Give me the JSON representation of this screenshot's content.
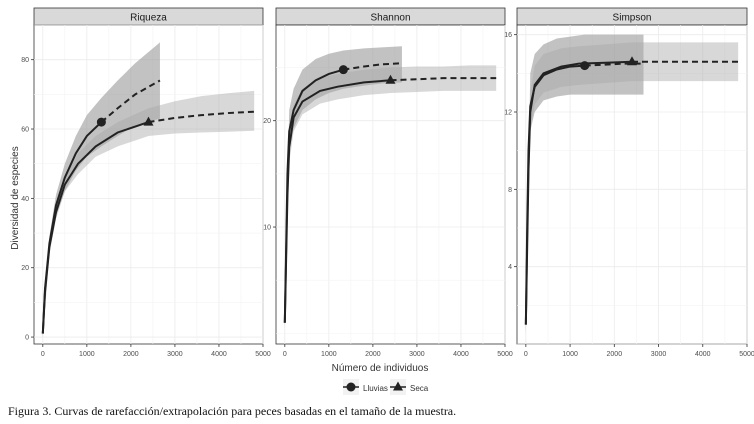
{
  "figure": {
    "caption": "Figura 3. Curvas de rarefacción/extrapolación para peces basadas en el tamaño de la muestra.",
    "xlabel": "Número de individuos",
    "ylabel": "Diversidad de especies",
    "legend": {
      "position": "bottom",
      "items": [
        {
          "label": "Lluvias",
          "shape": "circle"
        },
        {
          "label": "Seca",
          "shape": "triangle"
        }
      ]
    },
    "colors": {
      "line": "#222222",
      "ribbon_dark": "#9a9a9a",
      "ribbon_light": "#cfcfcf",
      "strip": "#d9d9d9",
      "grid": "#ebebeb"
    }
  },
  "chart_data": [
    {
      "type": "line",
      "title": "Riqueza",
      "xlim": [
        -200,
        5000
      ],
      "ylim": [
        -2,
        90
      ],
      "xticks": [
        0,
        1000,
        2000,
        3000,
        4000,
        5000
      ],
      "yticks": [
        0,
        20,
        40,
        60,
        80
      ],
      "grid": true,
      "series": [
        {
          "name": "Lluvias",
          "reference_sample": {
            "x": 1330,
            "y": 62
          },
          "interpolated": [
            [
              0,
              1
            ],
            [
              50,
              14
            ],
            [
              150,
              27
            ],
            [
              300,
              38
            ],
            [
              500,
              46
            ],
            [
              750,
              53
            ],
            [
              1000,
              58
            ],
            [
              1330,
              62
            ]
          ],
          "extrapolated": [
            [
              1330,
              62
            ],
            [
              1700,
              66
            ],
            [
              2100,
              70
            ],
            [
              2660,
              74
            ]
          ],
          "ribbon_upper": [
            [
              0,
              2
            ],
            [
              150,
              29
            ],
            [
              300,
              41
            ],
            [
              500,
              50
            ],
            [
              750,
              58
            ],
            [
              1000,
              64
            ],
            [
              1330,
              69
            ],
            [
              1700,
              74
            ],
            [
              2100,
              79
            ],
            [
              2660,
              85
            ]
          ],
          "ribbon_lower": [
            [
              0,
              0
            ],
            [
              150,
              25
            ],
            [
              300,
              35
            ],
            [
              500,
              42
            ],
            [
              750,
              48
            ],
            [
              1000,
              52
            ],
            [
              1330,
              55
            ],
            [
              1700,
              58
            ],
            [
              2100,
              61
            ],
            [
              2660,
              63
            ]
          ]
        },
        {
          "name": "Seca",
          "reference_sample": {
            "x": 2400,
            "y": 62
          },
          "interpolated": [
            [
              0,
              1
            ],
            [
              50,
              13
            ],
            [
              150,
              26
            ],
            [
              300,
              36
            ],
            [
              500,
              44
            ],
            [
              800,
              50
            ],
            [
              1200,
              55
            ],
            [
              1700,
              59
            ],
            [
              2400,
              62
            ]
          ],
          "extrapolated": [
            [
              2400,
              62
            ],
            [
              3000,
              63.2
            ],
            [
              3600,
              64
            ],
            [
              4200,
              64.6
            ],
            [
              4800,
              65
            ]
          ],
          "ribbon_upper": [
            [
              0,
              2
            ],
            [
              150,
              28
            ],
            [
              300,
              38
            ],
            [
              500,
              46
            ],
            [
              800,
              53
            ],
            [
              1200,
              58
            ],
            [
              1700,
              62
            ],
            [
              2400,
              66
            ],
            [
              3000,
              68
            ],
            [
              3600,
              69.5
            ],
            [
              4200,
              70.3
            ],
            [
              4800,
              71
            ]
          ],
          "ribbon_lower": [
            [
              0,
              0
            ],
            [
              150,
              24
            ],
            [
              300,
              34
            ],
            [
              500,
              42
            ],
            [
              800,
              47
            ],
            [
              1200,
              52
            ],
            [
              1700,
              55
            ],
            [
              2400,
              58
            ],
            [
              3000,
              58.7
            ],
            [
              3600,
              59
            ],
            [
              4200,
              59.2
            ],
            [
              4800,
              59.5
            ]
          ]
        }
      ]
    },
    {
      "type": "line",
      "title": "Shannon",
      "xlim": [
        -200,
        5000
      ],
      "ylim": [
        -1,
        29
      ],
      "xticks": [
        0,
        1000,
        2000,
        3000,
        4000,
        5000
      ],
      "yticks": [
        10,
        20
      ],
      "grid": true,
      "series": [
        {
          "name": "Lluvias",
          "reference_sample": {
            "x": 1330,
            "y": 24.8
          },
          "interpolated": [
            [
              0,
              1
            ],
            [
              30,
              8
            ],
            [
              60,
              15
            ],
            [
              100,
              19
            ],
            [
              200,
              21
            ],
            [
              400,
              22.8
            ],
            [
              700,
              23.8
            ],
            [
              1000,
              24.4
            ],
            [
              1330,
              24.8
            ]
          ],
          "extrapolated": [
            [
              1330,
              24.8
            ],
            [
              1800,
              25.1
            ],
            [
              2200,
              25.3
            ],
            [
              2660,
              25.4
            ]
          ],
          "ribbon_upper": [
            [
              0,
              1.5
            ],
            [
              100,
              21
            ],
            [
              200,
              23
            ],
            [
              400,
              24.8
            ],
            [
              700,
              25.8
            ],
            [
              1000,
              26.3
            ],
            [
              1330,
              26.6
            ],
            [
              1800,
              26.8
            ],
            [
              2200,
              26.9
            ],
            [
              2660,
              27
            ]
          ],
          "ribbon_lower": [
            [
              0,
              0.5
            ],
            [
              100,
              17
            ],
            [
              200,
              19.3
            ],
            [
              400,
              21
            ],
            [
              700,
              22
            ],
            [
              1000,
              22.6
            ],
            [
              1330,
              23
            ],
            [
              1800,
              23.3
            ],
            [
              2200,
              23.5
            ],
            [
              2660,
              23.6
            ]
          ]
        },
        {
          "name": "Seca",
          "reference_sample": {
            "x": 2400,
            "y": 23.8
          },
          "interpolated": [
            [
              0,
              1
            ],
            [
              30,
              7
            ],
            [
              60,
              13
            ],
            [
              100,
              17.5
            ],
            [
              200,
              20.3
            ],
            [
              400,
              21.8
            ],
            [
              800,
              22.8
            ],
            [
              1200,
              23.2
            ],
            [
              1800,
              23.6
            ],
            [
              2400,
              23.8
            ]
          ],
          "extrapolated": [
            [
              2400,
              23.8
            ],
            [
              3000,
              23.9
            ],
            [
              3600,
              24
            ],
            [
              4200,
              24
            ],
            [
              4800,
              24
            ]
          ],
          "ribbon_upper": [
            [
              0,
              1.5
            ],
            [
              100,
              19
            ],
            [
              200,
              21.5
            ],
            [
              400,
              23
            ],
            [
              800,
              24
            ],
            [
              1200,
              24.4
            ],
            [
              1800,
              24.8
            ],
            [
              2400,
              25
            ],
            [
              3000,
              25.1
            ],
            [
              3600,
              25.1
            ],
            [
              4200,
              25.2
            ],
            [
              4800,
              25.2
            ]
          ],
          "ribbon_lower": [
            [
              0,
              0.5
            ],
            [
              100,
              16
            ],
            [
              200,
              19
            ],
            [
              400,
              20.6
            ],
            [
              800,
              21.6
            ],
            [
              1200,
              22
            ],
            [
              1800,
              22.4
            ],
            [
              2400,
              22.6
            ],
            [
              3000,
              22.7
            ],
            [
              3600,
              22.8
            ],
            [
              4200,
              22.8
            ],
            [
              4800,
              22.8
            ]
          ]
        }
      ]
    },
    {
      "type": "line",
      "title": "Simpson",
      "xlim": [
        -200,
        5000
      ],
      "ylim": [
        0,
        16.5
      ],
      "xticks": [
        0,
        1000,
        2000,
        3000,
        4000,
        5000
      ],
      "yticks": [
        4,
        8,
        12,
        16
      ],
      "grid": true,
      "series": [
        {
          "name": "Lluvias",
          "reference_sample": {
            "x": 1330,
            "y": 14.4
          },
          "interpolated": [
            [
              0,
              1
            ],
            [
              30,
              6
            ],
            [
              60,
              10
            ],
            [
              100,
              12.3
            ],
            [
              200,
              13.3
            ],
            [
              400,
              13.9
            ],
            [
              700,
              14.2
            ],
            [
              1000,
              14.35
            ],
            [
              1330,
              14.4
            ]
          ],
          "extrapolated": [
            [
              1330,
              14.4
            ],
            [
              1800,
              14.45
            ],
            [
              2200,
              14.5
            ],
            [
              2660,
              14.5
            ]
          ],
          "ribbon_upper": [
            [
              0,
              1.5
            ],
            [
              100,
              14
            ],
            [
              200,
              15
            ],
            [
              400,
              15.5
            ],
            [
              700,
              15.8
            ],
            [
              1000,
              15.9
            ],
            [
              1330,
              16
            ],
            [
              1800,
              16
            ],
            [
              2200,
              16
            ],
            [
              2660,
              16
            ]
          ],
          "ribbon_lower": [
            [
              0,
              0.5
            ],
            [
              100,
              11
            ],
            [
              200,
              12
            ],
            [
              400,
              12.6
            ],
            [
              700,
              12.8
            ],
            [
              1000,
              12.9
            ],
            [
              1330,
              12.9
            ],
            [
              1800,
              12.9
            ],
            [
              2200,
              12.9
            ],
            [
              2660,
              12.9
            ]
          ]
        },
        {
          "name": "Seca",
          "reference_sample": {
            "x": 2400,
            "y": 14.6
          },
          "interpolated": [
            [
              0,
              1
            ],
            [
              30,
              5
            ],
            [
              60,
              9
            ],
            [
              100,
              12
            ],
            [
              200,
              13.4
            ],
            [
              400,
              14
            ],
            [
              800,
              14.35
            ],
            [
              1200,
              14.5
            ],
            [
              1800,
              14.55
            ],
            [
              2400,
              14.6
            ]
          ],
          "extrapolated": [
            [
              2400,
              14.6
            ],
            [
              3000,
              14.6
            ],
            [
              3600,
              14.6
            ],
            [
              4200,
              14.6
            ],
            [
              4800,
              14.6
            ]
          ],
          "ribbon_upper": [
            [
              0,
              1.5
            ],
            [
              100,
              13
            ],
            [
              200,
              14.4
            ],
            [
              400,
              15
            ],
            [
              800,
              15.3
            ],
            [
              1200,
              15.4
            ],
            [
              1800,
              15.5
            ],
            [
              2400,
              15.6
            ],
            [
              3000,
              15.6
            ],
            [
              3600,
              15.6
            ],
            [
              4200,
              15.6
            ],
            [
              4800,
              15.6
            ]
          ],
          "ribbon_lower": [
            [
              0,
              0.5
            ],
            [
              100,
              11
            ],
            [
              200,
              12.4
            ],
            [
              400,
              13
            ],
            [
              800,
              13.3
            ],
            [
              1200,
              13.4
            ],
            [
              1800,
              13.5
            ],
            [
              2400,
              13.6
            ],
            [
              3000,
              13.6
            ],
            [
              3600,
              13.6
            ],
            [
              4200,
              13.6
            ],
            [
              4800,
              13.6
            ]
          ]
        }
      ]
    }
  ]
}
